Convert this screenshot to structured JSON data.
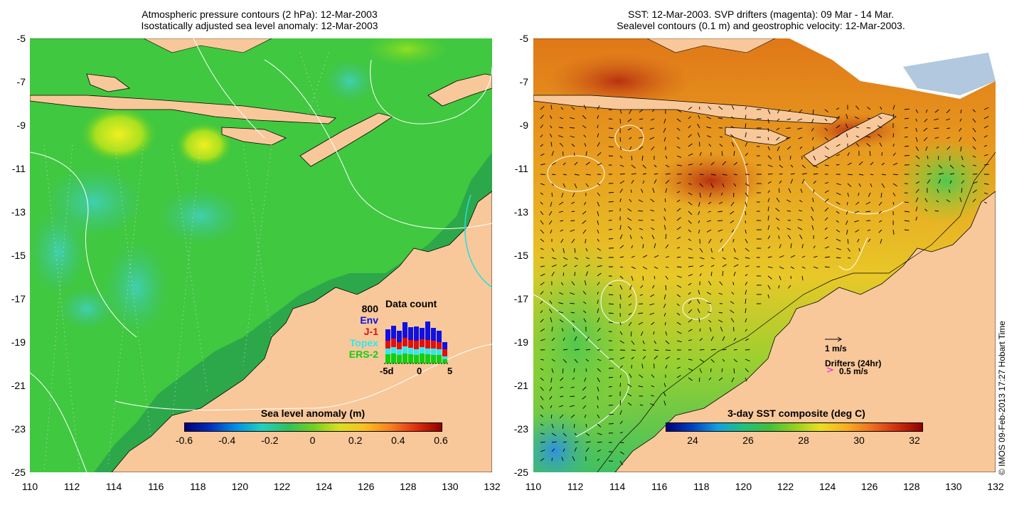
{
  "left_panel": {
    "title_line1": "Atmospheric pressure contours (2 hPa): 12-Mar-2003",
    "title_line2": "Isostatically adjusted sea level anomaly: 12-Mar-2003",
    "colorbar_title": "Sea level anomaly (m)",
    "colorbar_ticks": [
      "-0.6",
      "-0.4",
      "-0.2",
      "0",
      "0.2",
      "0.4",
      "0.6"
    ],
    "data_count": {
      "title": "Data count",
      "max_label": "800",
      "legend": [
        {
          "name": "Env",
          "color": "#1010e0"
        },
        {
          "name": "J-1",
          "color": "#e01010"
        },
        {
          "name": "Topex",
          "color": "#30e8f0"
        },
        {
          "name": "ERS-2",
          "color": "#10d010"
        }
      ],
      "x_labels": [
        "-5d",
        "0",
        "5"
      ]
    }
  },
  "right_panel": {
    "title_line1": "SST: 12-Mar-2003. SVP drifters (magenta): 09 Mar - 14 Mar.",
    "title_line2": "Sealevel contours (0.1 m) and geostrophic velocity: 12-Mar-2003.",
    "colorbar_title": "3-day SST composite (deg C)",
    "colorbar_ticks": [
      "24",
      "26",
      "28",
      "30",
      "32"
    ],
    "velocity_scale": "1 m/s",
    "drifters_label": "Drifters (24hr)",
    "drifters_scale": "0.5 m/s",
    "drifters_color": "#e020e0"
  },
  "axes": {
    "y_ticks": [
      "-5",
      "-7",
      "-9",
      "-11",
      "-13",
      "-15",
      "-17",
      "-19",
      "-21",
      "-23",
      "-25"
    ],
    "x_ticks": [
      "110",
      "112",
      "114",
      "116",
      "118",
      "120",
      "122",
      "124",
      "126",
      "128",
      "130",
      "132"
    ]
  },
  "copyright": "© IMOS 09-Feb-2013 17:27 Hobart Time",
  "colors": {
    "land": "#f8c89a",
    "sla_ocean": "#38c038",
    "sst_ocean": "#e89a20"
  }
}
